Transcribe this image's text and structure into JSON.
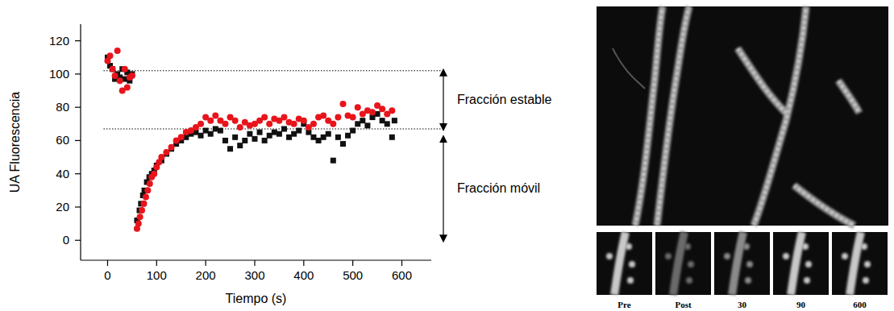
{
  "chart_data": {
    "type": "scatter",
    "x_label": "Tiempo (s)",
    "y_label": "UA Fluorescencia",
    "xlim": [
      -55,
      660
    ],
    "ylim": [
      -12,
      130
    ],
    "xticks": [
      0,
      100,
      200,
      300,
      400,
      500,
      600
    ],
    "yticks": [
      0,
      20,
      40,
      60,
      80,
      100,
      120
    ],
    "grid": false,
    "hlines": [
      102,
      67
    ],
    "annotations": [
      {
        "text": "Fracción estable",
        "range": [
          67,
          102
        ]
      },
      {
        "text": "Fracción móvil",
        "range": [
          0,
          62
        ]
      }
    ],
    "series": [
      {
        "color": "#111111",
        "marker": "square",
        "x": [
          0,
          5,
          10,
          15,
          20,
          25,
          30,
          35,
          40,
          45,
          50,
          60,
          65,
          68,
          72,
          75,
          80,
          85,
          90,
          95,
          100,
          110,
          120,
          130,
          140,
          150,
          160,
          170,
          180,
          190,
          200,
          210,
          220,
          230,
          240,
          250,
          260,
          270,
          280,
          290,
          300,
          310,
          320,
          330,
          340,
          350,
          360,
          370,
          380,
          390,
          400,
          410,
          420,
          430,
          440,
          450,
          460,
          470,
          480,
          490,
          500,
          510,
          520,
          530,
          540,
          550,
          560,
          570,
          580,
          585
        ],
        "values": [
          110,
          105,
          103,
          97,
          100,
          98,
          103,
          97,
          101,
          96,
          100,
          12,
          18,
          22,
          27,
          30,
          35,
          38,
          40,
          42,
          45,
          48,
          52,
          55,
          58,
          60,
          62,
          64,
          65,
          63,
          66,
          64,
          67,
          66,
          60,
          55,
          62,
          57,
          60,
          64,
          61,
          65,
          60,
          63,
          65,
          64,
          67,
          62,
          64,
          66,
          70,
          65,
          62,
          60,
          62,
          64,
          48,
          62,
          58,
          63,
          66,
          70,
          72,
          69,
          74,
          76,
          72,
          70,
          62,
          72
        ]
      },
      {
        "color": "#e8141b",
        "marker": "circle",
        "x": [
          0,
          5,
          10,
          15,
          20,
          25,
          30,
          35,
          40,
          45,
          50,
          60,
          63,
          66,
          70,
          74,
          78,
          82,
          86,
          90,
          95,
          100,
          105,
          110,
          120,
          130,
          140,
          150,
          160,
          170,
          180,
          190,
          200,
          210,
          220,
          230,
          240,
          250,
          260,
          270,
          280,
          290,
          300,
          310,
          320,
          330,
          340,
          350,
          360,
          370,
          380,
          390,
          400,
          410,
          420,
          430,
          440,
          450,
          460,
          470,
          480,
          490,
          500,
          510,
          520,
          530,
          540,
          550,
          560,
          570,
          580
        ],
        "values": [
          108,
          111,
          103,
          99,
          114,
          96,
          90,
          103,
          92,
          98,
          99,
          7,
          10,
          14,
          18,
          22,
          26,
          30,
          34,
          38,
          40,
          44,
          47,
          50,
          53,
          56,
          60,
          62,
          65,
          66,
          68,
          70,
          74,
          72,
          75,
          72,
          70,
          74,
          72,
          68,
          71,
          69,
          70,
          72,
          74,
          70,
          73,
          72,
          74,
          71,
          70,
          73,
          72,
          68,
          70,
          74,
          75,
          72,
          70,
          74,
          82,
          75,
          74,
          80,
          76,
          78,
          77,
          81,
          79,
          76,
          78
        ]
      }
    ]
  },
  "image_panel": {
    "labels": [
      "Pre",
      "Post",
      "30",
      "90",
      "600"
    ]
  }
}
